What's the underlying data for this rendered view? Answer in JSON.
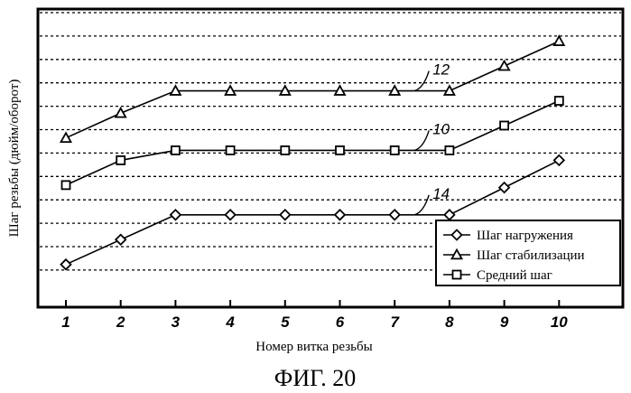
{
  "chart_data": {
    "type": "line",
    "x": [
      1,
      2,
      3,
      4,
      5,
      6,
      7,
      8,
      9,
      10
    ],
    "xlabel": "Номер витка резьбы",
    "ylabel": "Шаг резьбы (дюйм/оборот)",
    "ylim": [
      0,
      13
    ],
    "grid": true,
    "legend_position": "bottom-right",
    "series": [
      {
        "name": "Шаг нагружения",
        "marker": "diamond",
        "callout": "14",
        "values": [
          4.0,
          5.0,
          6.0,
          6.0,
          6.0,
          6.0,
          6.0,
          6.0,
          7.1,
          8.2
        ]
      },
      {
        "name": "Шаг стабилизации",
        "marker": "triangle",
        "callout": "12",
        "values": [
          9.1,
          10.1,
          11.0,
          11.0,
          11.0,
          11.0,
          11.0,
          11.0,
          12.0,
          13.0
        ]
      },
      {
        "name": "Средний шаг",
        "marker": "square",
        "callout": "10",
        "values": [
          7.2,
          8.2,
          8.6,
          8.6,
          8.6,
          8.6,
          8.6,
          8.6,
          9.6,
          10.6
        ]
      }
    ]
  },
  "caption": "ФИГ. 20"
}
